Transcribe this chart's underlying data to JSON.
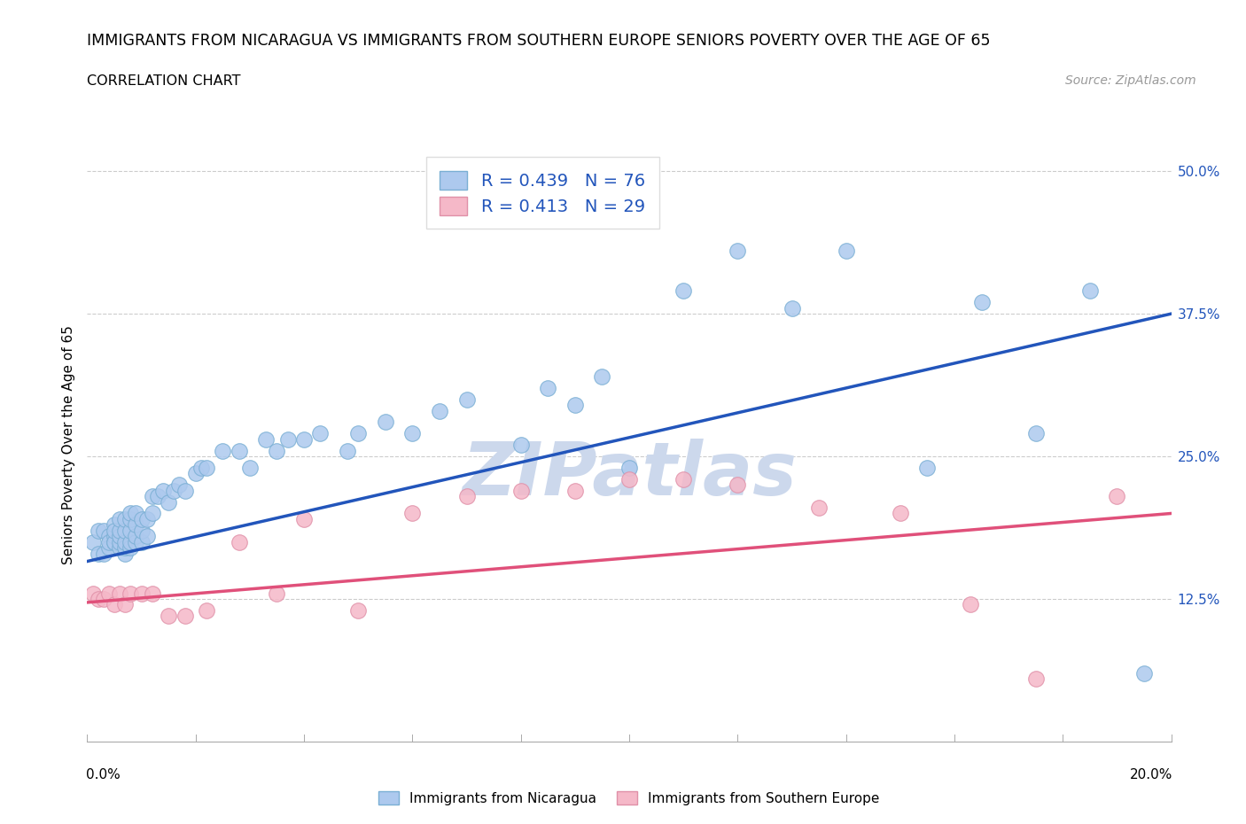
{
  "title": "IMMIGRANTS FROM NICARAGUA VS IMMIGRANTS FROM SOUTHERN EUROPE SENIORS POVERTY OVER THE AGE OF 65",
  "subtitle": "CORRELATION CHART",
  "source": "Source: ZipAtlas.com",
  "ylabel": "Seniors Poverty Over the Age of 65",
  "xlim": [
    0.0,
    0.2
  ],
  "ylim": [
    0.0,
    0.52
  ],
  "yticks_right": [
    0.125,
    0.25,
    0.375,
    0.5
  ],
  "ytick_labels_right": [
    "12.5%",
    "25.0%",
    "37.5%",
    "50.0%"
  ],
  "series": [
    {
      "name": "Immigrants from Nicaragua",
      "R": 0.439,
      "N": 76,
      "color_scatter": "#adc9ee",
      "color_edge": "#7aafd4",
      "color_line": "#2255bb",
      "color_legend": "#adc9ee",
      "x": [
        0.001,
        0.002,
        0.002,
        0.003,
        0.003,
        0.004,
        0.004,
        0.004,
        0.005,
        0.005,
        0.005,
        0.005,
        0.005,
        0.006,
        0.006,
        0.006,
        0.006,
        0.006,
        0.007,
        0.007,
        0.007,
        0.007,
        0.007,
        0.008,
        0.008,
        0.008,
        0.008,
        0.008,
        0.009,
        0.009,
        0.009,
        0.009,
        0.01,
        0.01,
        0.01,
        0.011,
        0.011,
        0.012,
        0.012,
        0.013,
        0.014,
        0.015,
        0.016,
        0.017,
        0.018,
        0.02,
        0.021,
        0.022,
        0.025,
        0.028,
        0.03,
        0.033,
        0.035,
        0.037,
        0.04,
        0.043,
        0.048,
        0.05,
        0.055,
        0.06,
        0.065,
        0.07,
        0.08,
        0.085,
        0.09,
        0.095,
        0.1,
        0.11,
        0.12,
        0.13,
        0.14,
        0.155,
        0.165,
        0.175,
        0.185,
        0.195
      ],
      "y": [
        0.175,
        0.165,
        0.185,
        0.165,
        0.185,
        0.18,
        0.17,
        0.175,
        0.175,
        0.18,
        0.175,
        0.19,
        0.185,
        0.17,
        0.175,
        0.18,
        0.185,
        0.195,
        0.165,
        0.17,
        0.175,
        0.185,
        0.195,
        0.17,
        0.175,
        0.185,
        0.195,
        0.2,
        0.175,
        0.18,
        0.19,
        0.2,
        0.175,
        0.185,
        0.195,
        0.18,
        0.195,
        0.2,
        0.215,
        0.215,
        0.22,
        0.21,
        0.22,
        0.225,
        0.22,
        0.235,
        0.24,
        0.24,
        0.255,
        0.255,
        0.24,
        0.265,
        0.255,
        0.265,
        0.265,
        0.27,
        0.255,
        0.27,
        0.28,
        0.27,
        0.29,
        0.3,
        0.26,
        0.31,
        0.295,
        0.32,
        0.24,
        0.395,
        0.43,
        0.38,
        0.43,
        0.24,
        0.385,
        0.27,
        0.395,
        0.06
      ],
      "line_x": [
        0.0,
        0.2
      ],
      "line_y": [
        0.158,
        0.375
      ]
    },
    {
      "name": "Immigrants from Southern Europe",
      "R": 0.413,
      "N": 29,
      "color_scatter": "#f5b8c8",
      "color_edge": "#e090a8",
      "color_line": "#e0507a",
      "color_legend": "#f5b8c8",
      "x": [
        0.001,
        0.002,
        0.003,
        0.004,
        0.005,
        0.006,
        0.007,
        0.008,
        0.01,
        0.012,
        0.015,
        0.018,
        0.022,
        0.028,
        0.035,
        0.04,
        0.05,
        0.06,
        0.07,
        0.08,
        0.09,
        0.1,
        0.11,
        0.12,
        0.135,
        0.15,
        0.163,
        0.175,
        0.19
      ],
      "y": [
        0.13,
        0.125,
        0.125,
        0.13,
        0.12,
        0.13,
        0.12,
        0.13,
        0.13,
        0.13,
        0.11,
        0.11,
        0.115,
        0.175,
        0.13,
        0.195,
        0.115,
        0.2,
        0.215,
        0.22,
        0.22,
        0.23,
        0.23,
        0.225,
        0.205,
        0.2,
        0.12,
        0.055,
        0.215
      ],
      "line_x": [
        0.0,
        0.2
      ],
      "line_y": [
        0.122,
        0.2
      ]
    }
  ],
  "watermark_color": "#ccd8ec",
  "grid_color": "#cccccc",
  "background_color": "#ffffff",
  "title_fontsize": 12.5,
  "subtitle_fontsize": 11.5,
  "axis_label_fontsize": 11,
  "tick_fontsize": 11,
  "legend_fontsize": 14,
  "source_fontsize": 10,
  "dpi": 100,
  "fig_width": 14.06,
  "fig_height": 9.3
}
